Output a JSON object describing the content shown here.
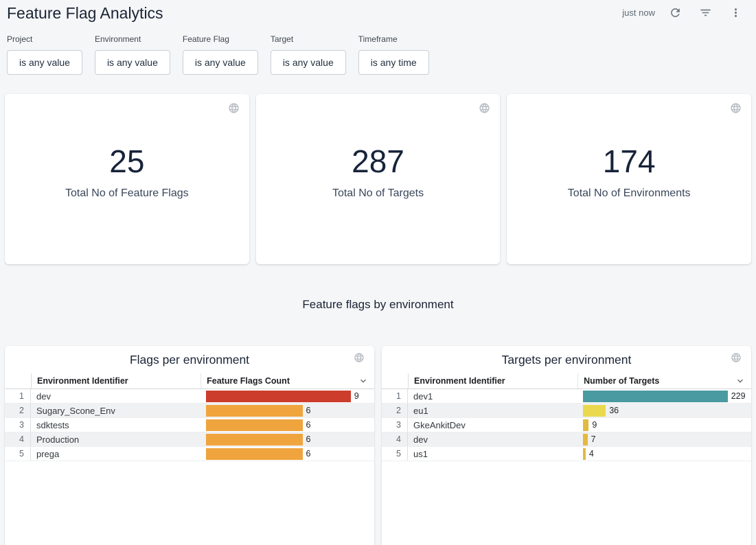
{
  "header": {
    "title": "Feature Flag Analytics",
    "refreshed_label": "just now"
  },
  "filters": [
    {
      "label": "Project",
      "value": "is any value"
    },
    {
      "label": "Environment",
      "value": "is any value"
    },
    {
      "label": "Feature Flag",
      "value": "is any value"
    },
    {
      "label": "Target",
      "value": "is any value"
    },
    {
      "label": "Timeframe",
      "value": "is any time"
    }
  ],
  "kpis": [
    {
      "value": "25",
      "label": "Total No of Feature Flags"
    },
    {
      "value": "287",
      "label": "Total No of Targets"
    },
    {
      "value": "174",
      "label": "Total No of Environments"
    }
  ],
  "section_title": "Feature flags by environment",
  "tables": [
    {
      "title": "Flags per environment",
      "columns": [
        "Environment Identifier",
        "Feature Flags Count"
      ],
      "max_value": 9,
      "rows": [
        {
          "index": "1",
          "identifier": "dev",
          "value": 9,
          "label": "9",
          "color": "#cd3d2c"
        },
        {
          "index": "2",
          "identifier": "Sugary_Scone_Env",
          "value": 6,
          "label": "6",
          "color": "#f0a43e"
        },
        {
          "index": "3",
          "identifier": "sdktests",
          "value": 6,
          "label": "6",
          "color": "#f0a43e"
        },
        {
          "index": "4",
          "identifier": "Production",
          "value": 6,
          "label": "6",
          "color": "#f0a43e"
        },
        {
          "index": "5",
          "identifier": "prega",
          "value": 6,
          "label": "6",
          "color": "#f0a43e"
        }
      ]
    },
    {
      "title": "Targets per environment",
      "columns": [
        "Environment Identifier",
        "Number of Targets"
      ],
      "max_value": 229,
      "rows": [
        {
          "index": "1",
          "identifier": "dev1",
          "value": 229,
          "label": "229",
          "color": "#4a9aa2"
        },
        {
          "index": "2",
          "identifier": "eu1",
          "value": 36,
          "label": "36",
          "color": "#ead94e"
        },
        {
          "index": "3",
          "identifier": "GkeAnkitDev",
          "value": 9,
          "label": "9",
          "color": "#e3b93f"
        },
        {
          "index": "4",
          "identifier": "dev",
          "value": 7,
          "label": "7",
          "color": "#e3b93f"
        },
        {
          "index": "5",
          "identifier": "us1",
          "value": 4,
          "label": "4",
          "color": "#e3b93f"
        }
      ]
    }
  ],
  "colors": {
    "page_background": "#f5f6f8",
    "card_background": "#ffffff",
    "title_text": "#1a2434",
    "muted_icon": "#6e767e",
    "globe_icon": "#b7bcc3",
    "bar_red": "#cd3d2c",
    "bar_orange": "#f0a43e",
    "bar_teal": "#4a9aa2",
    "bar_yellow": "#ead94e",
    "bar_amber": "#e3b93f"
  }
}
